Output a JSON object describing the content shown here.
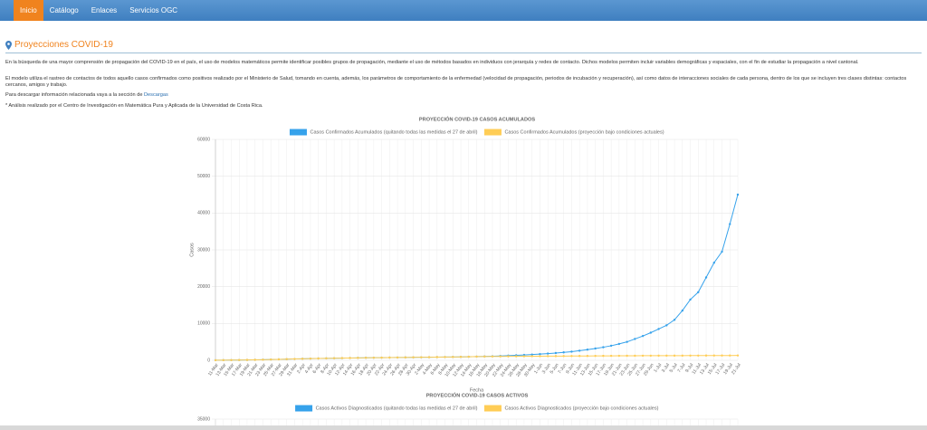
{
  "nav": [
    "Inicio",
    "Catálogo",
    "Enlaces",
    "Servicios OGC"
  ],
  "heading": "Proyecciones COVID-19",
  "paragraphs": [
    "En la búsqueda de una mayor comprensión de propagación del COVID-19 en el país, el uso de modelos matemáticos permite identificar posibles grupos de propagación, mediante el uso de métodos basados en individuos con jerarquía y redes de contacto. Dichos modelos permiten incluir variables demográficas y espaciales, con el fin de estudiar la propagación a nivel cantonal.",
    "El modelo utiliza el rastreo de contactos de todos aquello casos confirmados como positivos realizado por el Ministerio de Salud, tomando en cuenta, además, los parámetros de comportamiento de la enfermedad (velocidad de propagación, periodos de incubación y recuperación), así como datos de interacciones sociales de cada persona, dentro de los que se incluyen tres clases distintas: contactos cercanos, amigos y trabajo."
  ],
  "download": {
    "text": "Para descargar información relacionada vaya a la sección de",
    "link": "Descargas"
  },
  "note": "* Análisis realizado por el Centro de Investigación en Matemática Pura y Aplicada de la Universidad de Costa Rica.",
  "chart_data": [
    {
      "type": "line",
      "title": "PROYECCIÓN COVID-19 CASOS ACUMULADOS",
      "x_label": "Fecha",
      "y_label": "Casos",
      "categories": [
        "11-Mar",
        "13-Mar",
        "15-Mar",
        "17-Mar",
        "19-Mar",
        "21-Mar",
        "23-Mar",
        "25-Mar",
        "27-Mar",
        "29-Mar",
        "31-Mar",
        "2-Apr",
        "4-Apr",
        "6-Apr",
        "8-Apr",
        "10-Apr",
        "12-Apr",
        "14-Apr",
        "16-Apr",
        "18-Apr",
        "20-Apr",
        "22-Apr",
        "24-Apr",
        "26-Apr",
        "28-Apr",
        "30-Apr",
        "2-May",
        "4-May",
        "6-May",
        "8-May",
        "10-May",
        "12-May",
        "14-May",
        "16-May",
        "18-May",
        "20-May",
        "22-May",
        "24-May",
        "26-May",
        "28-May",
        "30-May",
        "1-Jun",
        "3-Jun",
        "5-Jun",
        "7-Jun",
        "9-Jun",
        "11-Jun",
        "13-Jun",
        "15-Jun",
        "17-Jun",
        "19-Jun",
        "21-Jun",
        "23-Jun",
        "25-Jun",
        "27-Jun",
        "29-Jun",
        "1-Jul",
        "3-Jul",
        "5-Jul",
        "7-Jul",
        "9-Jul",
        "11-Jul",
        "13-Jul",
        "15-Jul",
        "17-Jul",
        "19-Jul",
        "21-Jul"
      ],
      "series": [
        {
          "name": "Casos Confirmados Acumulados (quitando todas las medidas el 27 de abril)",
          "color": "#36a2eb",
          "values": [
            23,
            35,
            50,
            70,
            90,
            120,
            160,
            200,
            260,
            310,
            360,
            410,
            450,
            490,
            530,
            560,
            590,
            620,
            650,
            680,
            700,
            720,
            740,
            760,
            780,
            800,
            820,
            840,
            860,
            880,
            900,
            930,
            960,
            1000,
            1050,
            1100,
            1180,
            1260,
            1350,
            1450,
            1560,
            1680,
            1820,
            1980,
            2150,
            2350,
            2600,
            2900,
            3200,
            3550,
            3950,
            4450,
            5000,
            5800,
            6600,
            7500,
            8500,
            9500,
            11000,
            13500,
            16500,
            18500,
            22500,
            26500,
            29500,
            37000,
            45000
          ]
        },
        {
          "name": "Casos Confirmados Acumulados (proyección bajo condiciones actuales)",
          "color": "#ffcd56",
          "values": [
            23,
            35,
            50,
            70,
            90,
            120,
            160,
            200,
            260,
            310,
            360,
            410,
            450,
            490,
            530,
            560,
            590,
            620,
            650,
            680,
            700,
            720,
            740,
            760,
            780,
            800,
            820,
            840,
            860,
            880,
            900,
            930,
            960,
            1000,
            1020,
            1040,
            1060,
            1075,
            1090,
            1100,
            1110,
            1120,
            1130,
            1140,
            1150,
            1160,
            1170,
            1180,
            1190,
            1200,
            1210,
            1220,
            1230,
            1240,
            1250,
            1255,
            1260,
            1265,
            1270,
            1275,
            1280,
            1285,
            1290,
            1295,
            1300,
            1305,
            1310
          ]
        }
      ],
      "ylim": [
        0,
        60000
      ],
      "yticks": [
        0,
        10000,
        20000,
        30000,
        40000,
        50000,
        60000
      ],
      "grid": true
    },
    {
      "type": "line",
      "title": "PROYECCIÓN COVID-19 CASOS ACTIVOS",
      "series": [
        {
          "name": "Casos Activos Diagnosticados (quitando todas las medidas el 27 de abril)",
          "color": "#36a2eb"
        },
        {
          "name": "Casos Activos Diagnosticados (proyección bajo condiciones actuales)",
          "color": "#ffcd56"
        }
      ],
      "yticks": [
        35000
      ],
      "grid": true
    }
  ]
}
